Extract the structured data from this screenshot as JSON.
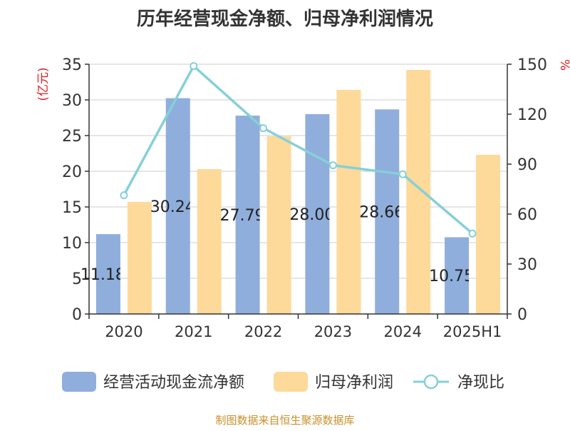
{
  "chart_data": {
    "type": "bar",
    "title": "历年经营现金净额、归母净利润情况",
    "categories": [
      "2020",
      "2021",
      "2022",
      "2023",
      "2024",
      "2025H1"
    ],
    "series": [
      {
        "name": "经营活动现金流净额",
        "type": "bar",
        "axis": "left",
        "color": "#8faedc",
        "values": [
          11.188,
          30.241,
          27.797,
          28.003,
          28.667,
          10.752
        ],
        "labels": [
          "11.188",
          "30.241",
          "27.797",
          "28.003",
          "28.667",
          "10.752"
        ]
      },
      {
        "name": "归母净利润",
        "type": "bar",
        "axis": "left",
        "color": "#fdd99a",
        "values": [
          15.7,
          20.3,
          24.9,
          31.4,
          34.2,
          22.3
        ]
      },
      {
        "name": "净现比",
        "type": "line",
        "axis": "right",
        "color": "#86d0d8",
        "values": [
          71.3,
          148.9,
          111.6,
          89.3,
          83.9,
          48.3
        ]
      }
    ],
    "left_axis": {
      "label": "(亿元)",
      "ylim": [
        0,
        35
      ],
      "ticks": [
        0,
        5,
        10,
        15,
        20,
        25,
        30,
        35
      ]
    },
    "right_axis": {
      "label": "%",
      "ylim": [
        0,
        150
      ],
      "ticks": [
        0,
        30,
        60,
        90,
        120,
        150
      ]
    },
    "grid": true,
    "legend": "bottom"
  },
  "source": "制图数据来自恒生聚源数据库",
  "colors": {
    "left_axis_label": "#e02020",
    "axis": "#333333",
    "grid": "#cccccc"
  }
}
